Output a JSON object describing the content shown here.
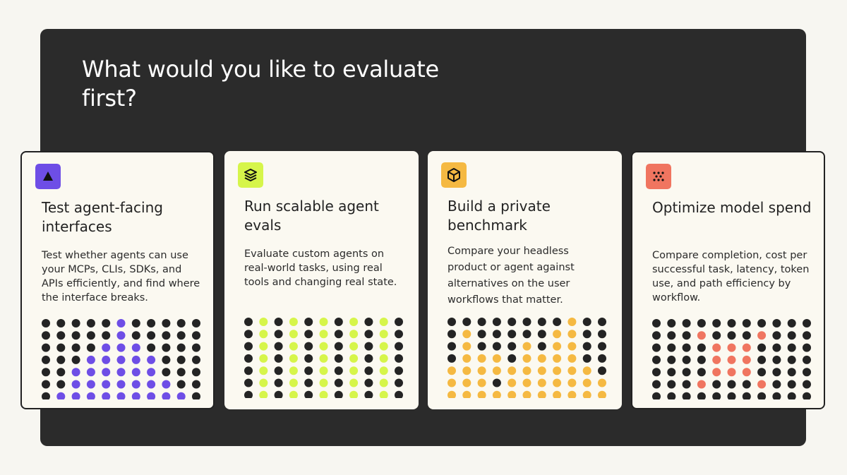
{
  "header": {
    "title": "What would you like to evaluate first?"
  },
  "cards": [
    {
      "heading": "Test agent-facing interfaces",
      "description": "Test whether agents can use your MCPs, CLIs, SDKs, and APIs efficiently, and find where the interface breaks."
    },
    {
      "heading": "Run scalable agent evals",
      "description": "Evaluate custom agents on real-world tasks, using real tools and changing real state."
    },
    {
      "heading": "Build a private benchmark",
      "description": "Compare your headless product or agent against alternatives on the user workflows that matter."
    },
    {
      "heading": "Optimize model spend",
      "description": "Compare completion, cost per successful task, latency, token use, and path efficiency by workflow."
    }
  ]
}
